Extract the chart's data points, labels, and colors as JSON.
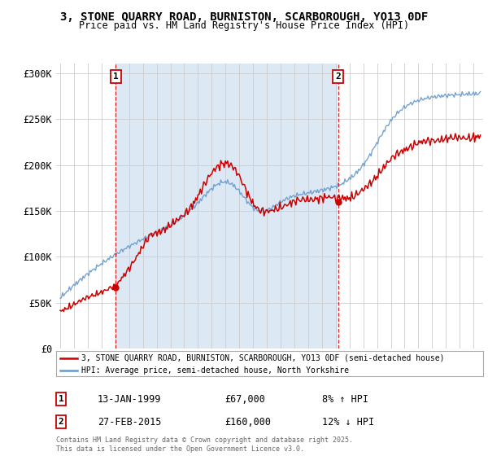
{
  "title": "3, STONE QUARRY ROAD, BURNISTON, SCARBOROUGH, YO13 0DF",
  "subtitle": "Price paid vs. HM Land Registry's House Price Index (HPI)",
  "ylabel_ticks": [
    "£0",
    "£50K",
    "£100K",
    "£150K",
    "£200K",
    "£250K",
    "£300K"
  ],
  "ytick_vals": [
    0,
    50000,
    100000,
    150000,
    200000,
    250000,
    300000
  ],
  "ylim": [
    0,
    310000
  ],
  "xlim_start": 1994.7,
  "xlim_end": 2025.7,
  "marker1_x": 1999.04,
  "marker1_y": 67000,
  "marker2_x": 2015.16,
  "marker2_y": 160000,
  "annotation1_date": "13-JAN-1999",
  "annotation1_price": "£67,000",
  "annotation1_hpi": "8% ↑ HPI",
  "annotation2_date": "27-FEB-2015",
  "annotation2_price": "£160,000",
  "annotation2_hpi": "12% ↓ HPI",
  "legend_line1": "3, STONE QUARRY ROAD, BURNISTON, SCARBOROUGH, YO13 0DF (semi-detached house)",
  "legend_line2": "HPI: Average price, semi-detached house, North Yorkshire",
  "footer": "Contains HM Land Registry data © Crown copyright and database right 2025.\nThis data is licensed under the Open Government Licence v3.0.",
  "red_color": "#cc0000",
  "blue_color": "#6699cc",
  "shade_color": "#dde8f5",
  "background_color": "#ffffff",
  "grid_color": "#cccccc"
}
